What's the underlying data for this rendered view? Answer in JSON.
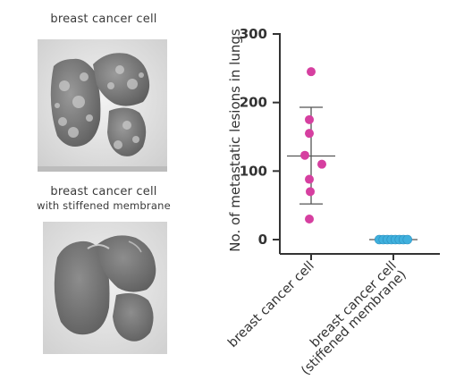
{
  "panels": [
    {
      "label_lines": [
        "breast cancer cell"
      ]
    },
    {
      "label_lines": [
        "breast cancer cell",
        "with stiffened membrane"
      ]
    }
  ],
  "chart_data": {
    "type": "scatter",
    "title": "",
    "ylabel": "No. of metastatic lesions in lungs",
    "xlabel": "",
    "ylim": [
      0,
      300
    ],
    "yticks": [
      0,
      100,
      200,
      300
    ],
    "grid": false,
    "categories": [
      "breast cancer cell",
      "breast cancer cell\n(stiffened membrane)"
    ],
    "category_lines": [
      [
        "breast cancer cell"
      ],
      [
        "breast cancer cell",
        "(stiffened membrane)"
      ]
    ],
    "series": [
      {
        "category": "breast cancer cell",
        "color": "#d63fa0",
        "values": [
          245,
          175,
          155,
          123,
          110,
          88,
          70,
          30
        ],
        "mean": 122,
        "error_low": 52,
        "error_high": 193
      },
      {
        "category": "breast cancer cell (stiffened membrane)",
        "color": "#3fb0dd",
        "values": [
          0,
          0,
          0,
          0,
          0,
          0,
          0,
          0
        ],
        "mean": 0,
        "error_low": 0,
        "error_high": 0
      }
    ]
  }
}
